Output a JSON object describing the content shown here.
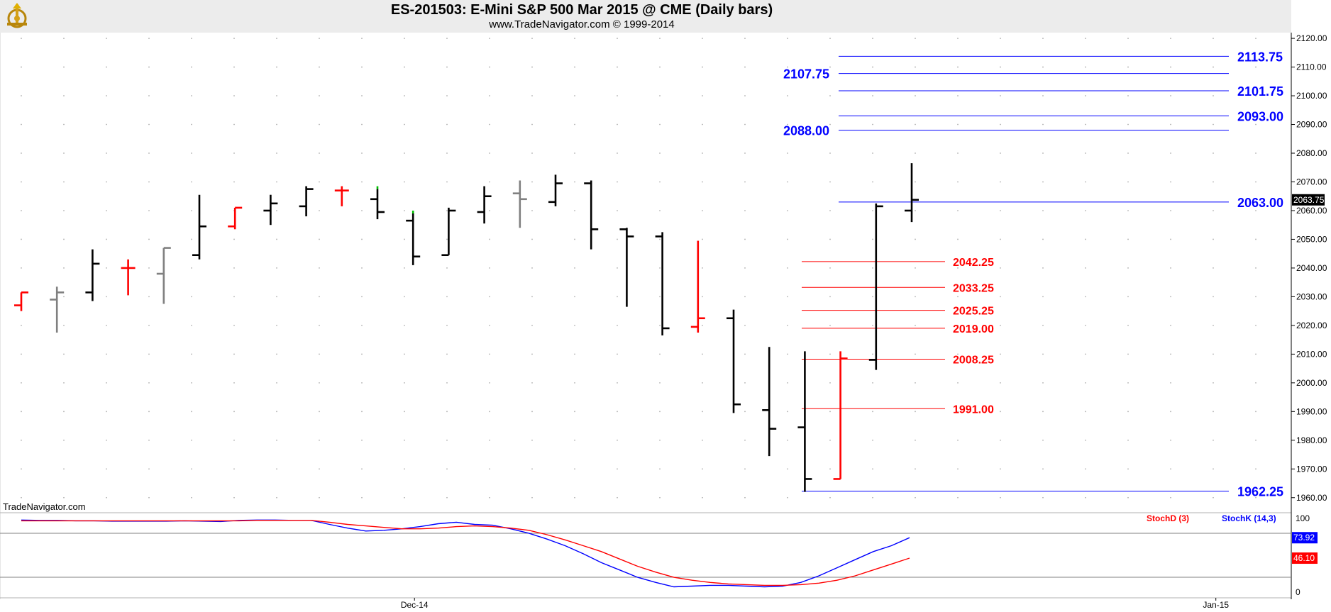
{
  "header": {
    "title": "ES-201503:  E-Mini S&P 500 Mar 2015 @ CME  (Daily bars)",
    "subtitle": "www.TradeNavigator.com © 1999-2014",
    "watermark": "TradeNavigator.com"
  },
  "colors": {
    "bar_default": "#000000",
    "bar_down": "#ff0000",
    "bar_neutral": "#808080",
    "bar_tick_green": "#00c000",
    "target_blue": "#0000ff",
    "target_red": "#ff0000",
    "stochK": "#0000ff",
    "stochD": "#ff0000",
    "grid_dot": "#b0b0b0",
    "header_bg": "#ececec"
  },
  "chart_data": [
    {
      "type": "ohlc",
      "title": "ES-201503:  E-Mini S&P 500 Mar 2015 @ CME  (Daily bars)",
      "ylim": [
        1955,
        2122
      ],
      "y_ticks": [
        1960,
        1970,
        1980,
        1990,
        2000,
        2010,
        2020,
        2030,
        2040,
        2050,
        2060,
        2070,
        2080,
        2090,
        2100,
        2110,
        2120
      ],
      "y_tick_labels": [
        "1960.00",
        "1970.00",
        "1980.00",
        "1990.00",
        "2000.00",
        "2010.00",
        "2020.00",
        "2030.00",
        "2040.00",
        "2050.00",
        "2060.00",
        "2070.00",
        "2080.00",
        "2090.00",
        "2100.00",
        "2110.00",
        "2120.00"
      ],
      "x_tick_labels": [
        {
          "label": "Dec-14",
          "index": 11
        },
        {
          "label": "Jan-15",
          "index": 33.5
        }
      ],
      "grid": "dotted",
      "last_price_label": "2063.75",
      "bars": [
        {
          "o": 2027,
          "h": 2031.5,
          "l": 2025,
          "c": 2031.5,
          "color": "red"
        },
        {
          "o": 2029,
          "h": 2033.5,
          "l": 2017.5,
          "c": 2031.5,
          "color": "gray"
        },
        {
          "o": 2031.5,
          "h": 2046.5,
          "l": 2028.5,
          "c": 2041.5,
          "color": "black"
        },
        {
          "o": 2040,
          "h": 2043,
          "l": 2030.5,
          "c": 2040,
          "color": "red"
        },
        {
          "o": 2038,
          "h": 2047,
          "l": 2027.5,
          "c": 2047,
          "color": "gray"
        },
        {
          "o": 2044.5,
          "h": 2065.5,
          "l": 2043,
          "c": 2054.5,
          "color": "black"
        },
        {
          "o": 2054.5,
          "h": 2061,
          "l": 2053.5,
          "c": 2061,
          "color": "red"
        },
        {
          "o": 2060,
          "h": 2065.5,
          "l": 2055,
          "c": 2062.5,
          "color": "black"
        },
        {
          "o": 2061.5,
          "h": 2068.5,
          "l": 2058,
          "c": 2067.5,
          "color": "black"
        },
        {
          "o": 2067,
          "h": 2068.5,
          "l": 2061.5,
          "c": 2067,
          "color": "red"
        },
        {
          "o": 2064,
          "h": 2067.5,
          "l": 2057,
          "c": 2059.5,
          "color": "black",
          "tick": "green"
        },
        {
          "o": 2056.5,
          "h": 2059,
          "l": 2041,
          "c": 2044,
          "color": "black",
          "tick": "green"
        },
        {
          "o": 2044.5,
          "h": 2061,
          "l": 2044.5,
          "c": 2060,
          "color": "black"
        },
        {
          "o": 2059.5,
          "h": 2068.5,
          "l": 2055.5,
          "c": 2065,
          "color": "black"
        },
        {
          "o": 2066,
          "h": 2070.5,
          "l": 2054,
          "c": 2064,
          "color": "gray"
        },
        {
          "o": 2063,
          "h": 2072.5,
          "l": 2061.5,
          "c": 2069.5,
          "color": "black"
        },
        {
          "o": 2069.5,
          "h": 2070.5,
          "l": 2046.5,
          "c": 2053.5,
          "color": "black"
        },
        {
          "o": 2053.5,
          "h": 2054,
          "l": 2026.5,
          "c": 2051,
          "color": "black"
        },
        {
          "o": 2051,
          "h": 2052.5,
          "l": 2016.5,
          "c": 2019,
          "color": "black"
        },
        {
          "o": 2019.5,
          "h": 2049.5,
          "l": 2017.5,
          "c": 2022.5,
          "color": "red"
        },
        {
          "o": 2022.5,
          "h": 2025.5,
          "l": 1989.5,
          "c": 1992.5,
          "color": "black"
        },
        {
          "o": 1990.5,
          "h": 2012.5,
          "l": 1974.5,
          "c": 1984,
          "color": "black"
        },
        {
          "o": 1984.5,
          "h": 2011,
          "l": 1962,
          "c": 1966.5,
          "color": "black"
        },
        {
          "o": 1966.5,
          "h": 2011,
          "l": 1966.5,
          "c": 2008.5,
          "color": "red"
        },
        {
          "o": 2008,
          "h": 2062.5,
          "l": 2004.5,
          "c": 2061.5,
          "color": "black"
        },
        {
          "o": 2060,
          "h": 2076.5,
          "l": 2056,
          "c": 2063.75,
          "color": "black"
        }
      ],
      "levels_blue": [
        {
          "value": 2113.75,
          "label": "2113.75"
        },
        {
          "value": 2107.75,
          "label": "2107.75"
        },
        {
          "value": 2101.75,
          "label": "2101.75"
        },
        {
          "value": 2093.0,
          "label": "2093.00"
        },
        {
          "value": 2088.0,
          "label": "2088.00"
        },
        {
          "value": 2063.0,
          "label": "2063.00"
        },
        {
          "value": 1962.25,
          "label": "1962.25"
        }
      ],
      "levels_red": [
        {
          "value": 2042.25,
          "label": "2042.25"
        },
        {
          "value": 2033.25,
          "label": "2033.25"
        },
        {
          "value": 2025.25,
          "label": "2025.25"
        },
        {
          "value": 2019.0,
          "label": "2019.00"
        },
        {
          "value": 2008.25,
          "label": "2008.25"
        },
        {
          "value": 1991.0,
          "label": "1991.00"
        }
      ]
    },
    {
      "type": "line",
      "ylim": [
        -7,
        107
      ],
      "y_tick_labels": [
        {
          "value": 100,
          "label": "100"
        },
        {
          "value": 0,
          "label": "0"
        }
      ],
      "bands": [
        80,
        20
      ],
      "legend": [
        "StochD (3)",
        "StochK (14,3)"
      ],
      "series": [
        {
          "name": "StochK (14,3)",
          "color": "blue",
          "last_label": "73.92",
          "values": [
            98,
            97.5,
            97.5,
            97,
            97,
            96.5,
            96.5,
            96.5,
            96.5,
            97,
            96.5,
            96,
            97.5,
            98,
            98,
            97.5,
            97.5,
            92,
            87,
            83,
            84,
            86,
            89,
            93,
            95,
            92,
            91,
            86,
            80,
            72,
            63,
            52,
            40,
            30,
            20,
            13,
            7,
            8,
            9,
            9,
            8,
            7,
            8,
            13,
            22,
            33,
            44,
            55,
            63,
            73.92
          ]
        },
        {
          "name": "StochD (3)",
          "color": "red",
          "last_label": "46.10",
          "values": [
            97,
            97,
            97,
            97,
            97,
            97,
            97,
            97,
            97,
            97,
            97,
            97,
            97,
            97.5,
            97.5,
            97.5,
            97.5,
            95,
            92,
            90,
            88,
            86,
            86,
            87,
            89,
            90,
            89,
            87,
            84,
            78,
            71,
            63,
            55,
            45,
            35,
            27,
            20,
            16,
            13,
            11,
            10,
            9,
            9,
            10,
            12,
            16,
            22,
            30,
            38,
            46.1
          ]
        }
      ]
    }
  ]
}
